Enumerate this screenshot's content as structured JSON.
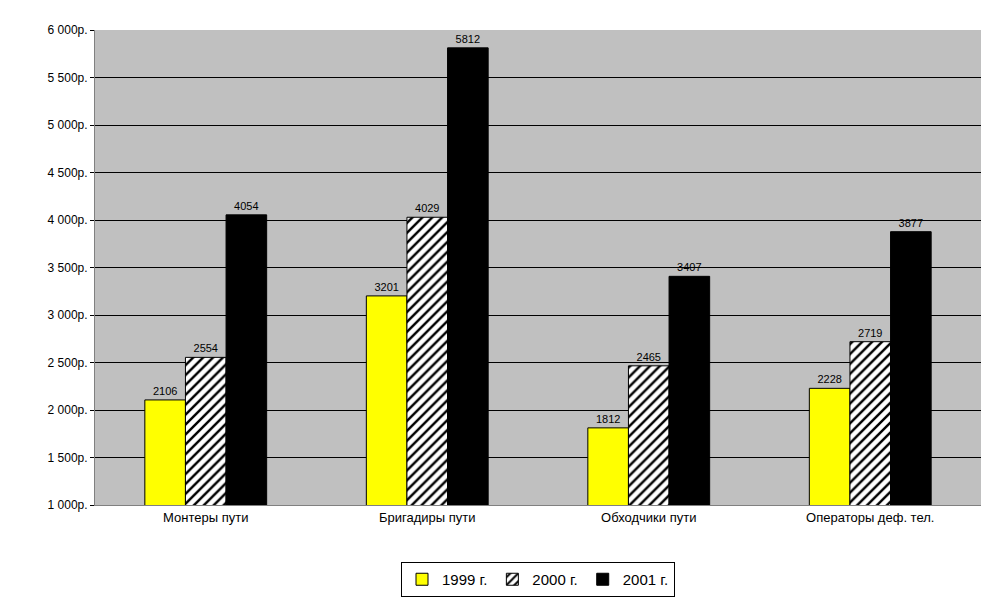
{
  "chart_data": {
    "type": "bar",
    "categories": [
      "Монтеры пути",
      "Бригадиры пути",
      "Обходчики пути",
      "Операторы деф. тел."
    ],
    "series": [
      {
        "name": "1999 г.",
        "color": "#ffff00",
        "values": [
          2106,
          3201,
          1812,
          2228
        ]
      },
      {
        "name": "2000 г.",
        "color": "#ffffff",
        "marker": "hatch",
        "values": [
          2554,
          4029,
          2465,
          2719
        ]
      },
      {
        "name": "2001 г.",
        "color": "#000000",
        "values": [
          4054,
          5812,
          3407,
          3877
        ]
      }
    ],
    "ylim": [
      1000,
      6000
    ],
    "yticks": [
      {
        "value": 1000,
        "label": "1 000р."
      },
      {
        "value": 1500,
        "label": "1 500р."
      },
      {
        "value": 2000,
        "label": "2 000р."
      },
      {
        "value": 2500,
        "label": "2 500р."
      },
      {
        "value": 3000,
        "label": "3 000р."
      },
      {
        "value": 3500,
        "label": "3 500р."
      },
      {
        "value": 4000,
        "label": "4 000р."
      },
      {
        "value": 4500,
        "label": "4 500р."
      },
      {
        "value": 5000,
        "label": "5 000р."
      },
      {
        "value": 5500,
        "label": "5 500р."
      },
      {
        "value": 6000,
        "label": "6 000р."
      }
    ],
    "grid": true,
    "legend": "bottom",
    "data_labels": true
  }
}
